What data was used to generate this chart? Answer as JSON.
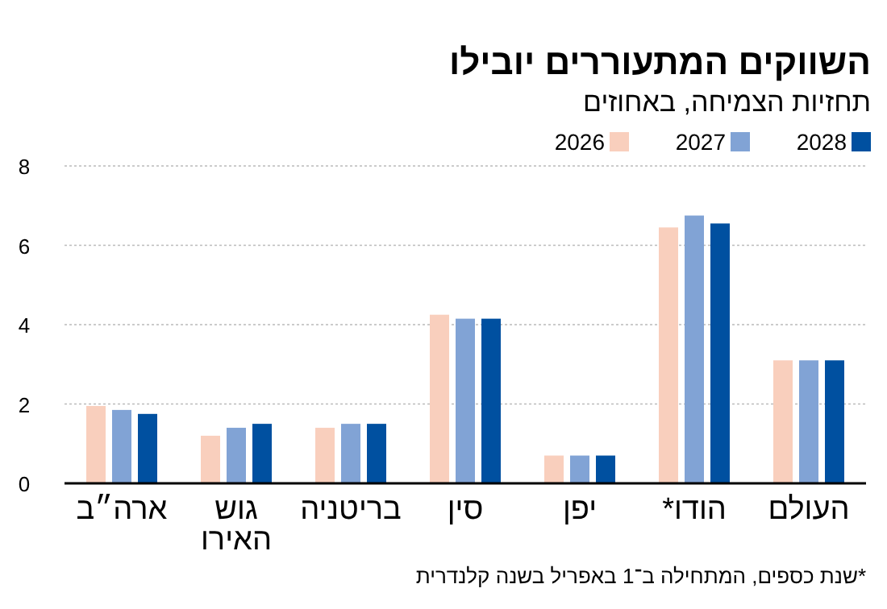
{
  "chart_data": {
    "type": "bar",
    "title": "השווקים המתעוררים יובילו",
    "subtitle": "תחזיות הצמיחה, באחוזים",
    "categories": [
      "ארה״ב",
      "גוש האירו",
      "בריטניה",
      "סין",
      "יפן",
      "הודו*",
      "העולם"
    ],
    "series": [
      {
        "name": "2026",
        "color": "#f9cfbd",
        "values": [
          1.95,
          1.2,
          1.4,
          4.25,
          0.7,
          6.45,
          3.1
        ]
      },
      {
        "name": "2027",
        "color": "#81a3d5",
        "values": [
          1.85,
          1.4,
          1.5,
          4.15,
          0.7,
          6.75,
          3.1
        ]
      },
      {
        "name": "2028",
        "color": "#0050a0",
        "values": [
          1.75,
          1.5,
          1.5,
          4.15,
          0.7,
          6.55,
          3.1
        ]
      }
    ],
    "ylim": [
      0,
      8
    ],
    "yticks": [
      0,
      2,
      4,
      6,
      8
    ],
    "grid": "y",
    "legend": "top right",
    "annotations": [
      "*שנת כספים, המתחילה ב־1 באפריל בשנה קלנדרית"
    ]
  }
}
